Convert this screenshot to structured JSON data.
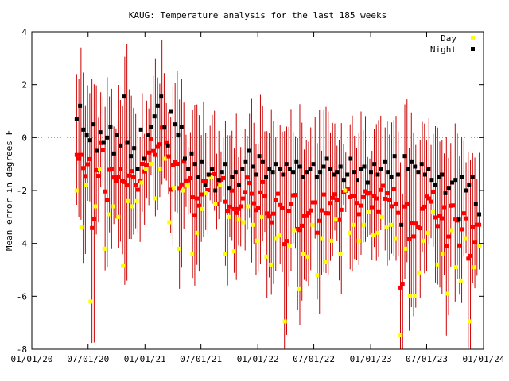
{
  "chart_data": {
    "type": "scatter",
    "title": "KAUG: Temperature analysis for the last 185 weeks",
    "ylabel": "Mean error in degrees F",
    "xlabel": "",
    "ylim": [
      -8,
      4
    ],
    "xlim": [
      "2020-01-01",
      "2024-01-01"
    ],
    "x_ticks": [
      "01/01/20",
      "07/01/20",
      "01/01/21",
      "07/01/21",
      "01/01/22",
      "07/01/22",
      "01/01/23",
      "07/01/23",
      "01/01/24"
    ],
    "y_ticks": [
      -8,
      -6,
      -4,
      -2,
      0,
      2,
      4
    ],
    "zero_line": true,
    "legend_position": "top-right",
    "legend": [
      {
        "name": "Day",
        "color": "#ffff00"
      },
      {
        "name": "Night",
        "color": "#000000"
      }
    ],
    "colors": {
      "mean": "#ff0000",
      "error_bar": "#cc0000",
      "zero_line": "#999999"
    },
    "date_range": [
      "2020-05-25",
      "2023-12-18"
    ],
    "weeks": 185,
    "series": [
      {
        "name": "Night",
        "values": [
          0.7,
          1.2,
          0.3,
          0.1,
          -0.1,
          0.5,
          -0.5,
          0.2,
          -0.2,
          0.0,
          0.4,
          -0.6,
          0.1,
          -0.3,
          1.55,
          -0.2,
          -0.7,
          -0.4,
          -1.2,
          0.3,
          -0.8,
          0.1,
          0.4,
          0.8,
          1.2,
          1.55,
          0.4,
          -0.3,
          1.0,
          0.5,
          0.1,
          0.4,
          -0.8,
          -1.2,
          -0.6,
          -1.0,
          -1.5,
          -0.9,
          -1.8,
          -1.4,
          -1.2,
          -2.0,
          -1.6,
          -1.3,
          -1.0,
          -1.9,
          -1.5,
          -1.3,
          -1.8,
          -1.2,
          -0.9,
          -0.5,
          -1.1,
          -1.4,
          -0.7,
          -0.9,
          -1.5,
          -1.2,
          -1.3,
          -1.0,
          -1.2,
          -1.4,
          -1.0,
          -1.2,
          -1.3,
          -0.9,
          -1.1,
          -1.5,
          -1.3,
          -1.2,
          -1.0,
          -1.5,
          -1.3,
          -1.1,
          -0.8,
          -1.2,
          -1.4,
          -1.3,
          -1.1,
          -1.6,
          -1.4,
          -0.8,
          -1.3,
          -1.6,
          -1.2,
          -1.1,
          -1.7,
          -1.3,
          -1.0,
          -1.4,
          -1.2,
          -0.9,
          -1.3,
          -1.5,
          -0.7,
          -1.4,
          -3.3,
          -0.7,
          -1.2,
          -0.9,
          -1.1,
          -1.3,
          -1.0,
          -1.4,
          -1.2,
          -1.6,
          -1.8,
          -1.5,
          -1.4,
          -2.1,
          -1.9,
          -1.7,
          -1.6,
          -3.1,
          -1.5,
          -2.0,
          -1.8,
          -1.5,
          -2.5,
          -2.9
        ]
      },
      {
        "name": "Day",
        "values": [
          -2.0,
          -3.4,
          -1.8,
          -6.2,
          -2.6,
          -1.2,
          -4.2,
          -2.9,
          -2.6,
          -3.0,
          -4.85,
          -2.4,
          -2.6,
          -2.4,
          -1.7,
          -1.2,
          -1.0,
          -2.3,
          -1.2,
          -0.8,
          -3.2,
          -1.9,
          -4.2,
          -2.0,
          -1.8,
          -4.4,
          -3.6,
          -2.7,
          -2.1,
          -1.5,
          -2.5,
          -1.8,
          -4.4,
          -3.0,
          -4.3,
          -3.1,
          -3.2,
          -2.6,
          -3.3,
          -3.9,
          -3.0,
          -4.5,
          -4.8,
          -3.8,
          -3.7,
          -6.95,
          -4.1,
          -3.5,
          -5.7,
          -4.4,
          -4.5,
          -3.3,
          -5.2,
          -3.8,
          -4.7,
          -3.9,
          -3.1,
          -4.4,
          -2.0,
          -3.6,
          -3.3,
          -3.9,
          -3.3,
          -2.8,
          -3.7,
          -3.6,
          -3.0,
          -3.4,
          -3.3,
          -3.8,
          -7.45,
          -4.2,
          -6.0,
          -6.0,
          -5.1,
          -3.9,
          -3.6,
          -2.8,
          -4.8,
          -4.4,
          -5.9,
          -3.5,
          -4.9,
          -5.4,
          -3.8,
          -6.95,
          -4.9,
          -4.1
        ]
      }
    ]
  }
}
